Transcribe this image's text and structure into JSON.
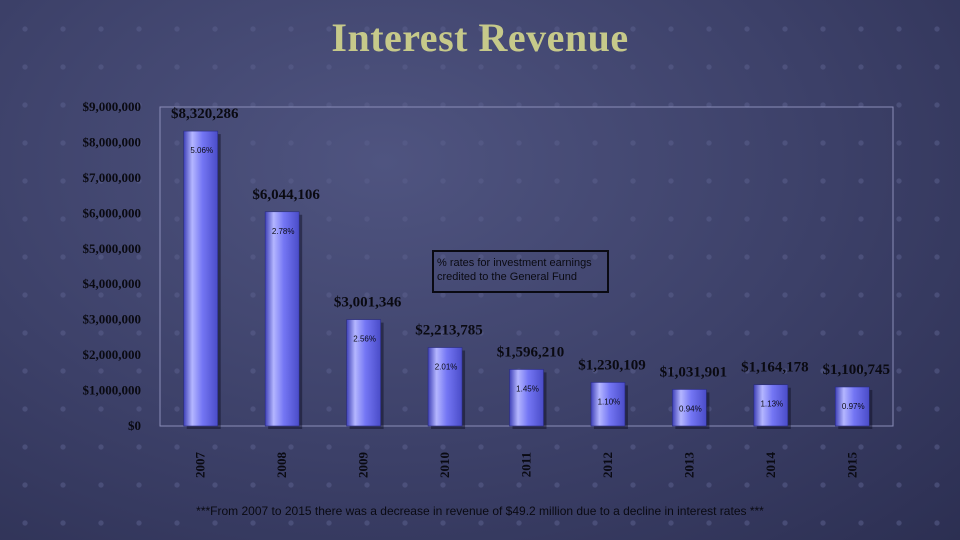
{
  "title": "Interest Revenue",
  "footnote": "***From 2007 to 2015 there was a decrease in revenue of $49.2 million due to a decline in interest rates ***",
  "annotation": {
    "line1": "% rates for investment earnings",
    "line2": "credited to the General Fund"
  },
  "colors": {
    "title": "#c6c98a",
    "bar": "#6a6cf0",
    "bar_light": "#b4b6ff",
    "bar_dark": "#3f41b8"
  },
  "chart_data": {
    "type": "bar",
    "categories": [
      "2007",
      "2008",
      "2009",
      "2010",
      "2011",
      "2012",
      "2013",
      "2014",
      "2015"
    ],
    "values": [
      8320286,
      6044106,
      3001346,
      2213785,
      1596210,
      1230109,
      1031901,
      1164178,
      1100745
    ],
    "value_labels": [
      "$8,320,286",
      "$6,044,106",
      "$3,001,346",
      "$2,213,785",
      "$1,596,210",
      "$1,230,109",
      "$1,031,901",
      "$1,164,178",
      "$1,100,745"
    ],
    "rate_labels": [
      "5.06%",
      "2.78%",
      "2.56%",
      "2.01%",
      "1.45%",
      "1.10%",
      "0.94%",
      "1.13%",
      "0.97%"
    ],
    "ylim": [
      0,
      9000000
    ],
    "y_ticks": [
      "$0",
      "$1,000,000",
      "$2,000,000",
      "$3,000,000",
      "$4,000,000",
      "$5,000,000",
      "$6,000,000",
      "$7,000,000",
      "$8,000,000",
      "$9,000,000"
    ],
    "xlabel": "",
    "ylabel": "",
    "grid": false,
    "legend": "none"
  }
}
